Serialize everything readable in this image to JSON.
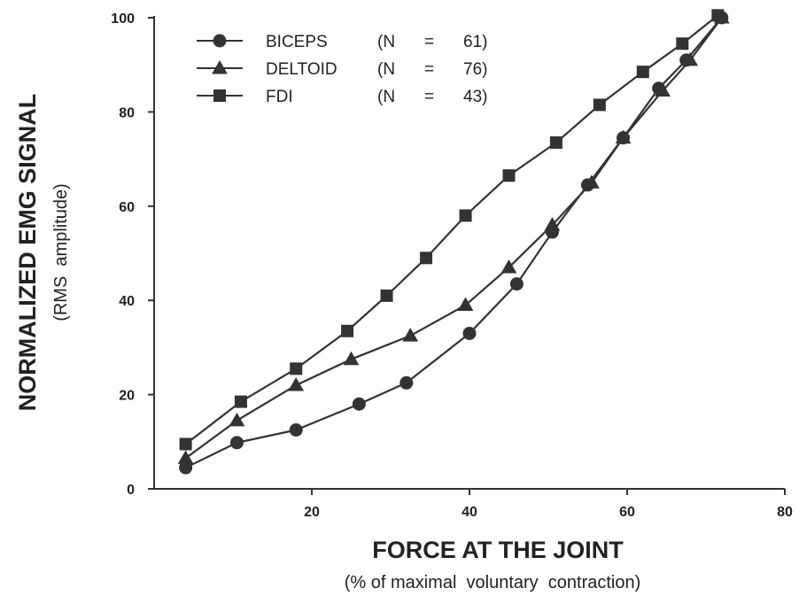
{
  "chart_data": {
    "type": "line",
    "title": "",
    "xlabel": "FORCE AT THE JOINT",
    "xlabel_sub": "(% of maximal  voluntary  contraction)",
    "ylabel": "NORMALIZED EMG SIGNAL",
    "ylabel_sub": "(RMS  amplitude)",
    "xlim": [
      0,
      80
    ],
    "ylim": [
      0,
      100
    ],
    "xticks": [
      "20",
      "40",
      "60",
      "80"
    ],
    "yticks": [
      "0",
      "20",
      "40",
      "60",
      "80",
      "100"
    ],
    "grid": false,
    "legend_position": "top-left",
    "series": [
      {
        "name": "BICEPS",
        "n_label": "(N",
        "eq": "=",
        "n_value": "61)",
        "marker": "circle",
        "x": [
          4,
          10.5,
          18,
          26,
          32,
          40,
          46,
          50.5,
          55,
          59.5,
          64,
          67.5,
          72
        ],
        "y": [
          4.5,
          9.8,
          12.5,
          18,
          22.5,
          33,
          43.5,
          54.5,
          64.5,
          74.5,
          85,
          91,
          100
        ]
      },
      {
        "name": "DELTOID",
        "n_label": "(N",
        "eq": "=",
        "n_value": "76)",
        "marker": "triangle",
        "x": [
          4,
          10.5,
          18,
          25,
          32.5,
          39.5,
          45,
          50.5,
          55.5,
          59.5,
          64.5,
          68,
          72
        ],
        "y": [
          6.5,
          14.5,
          22,
          27.5,
          32.5,
          39,
          47,
          56,
          65,
          74.5,
          84.5,
          91,
          100
        ]
      },
      {
        "name": "FDI",
        "n_label": "(N",
        "eq": "=",
        "n_value": "43)",
        "marker": "square",
        "x": [
          4,
          11,
          18,
          24.5,
          29.5,
          34.5,
          39.5,
          45,
          51,
          56.5,
          62,
          67,
          71.5
        ],
        "y": [
          9.5,
          18.5,
          25.5,
          33.5,
          41,
          49,
          58,
          66.5,
          73.5,
          81.5,
          88.5,
          94.5,
          100.5
        ]
      }
    ]
  }
}
